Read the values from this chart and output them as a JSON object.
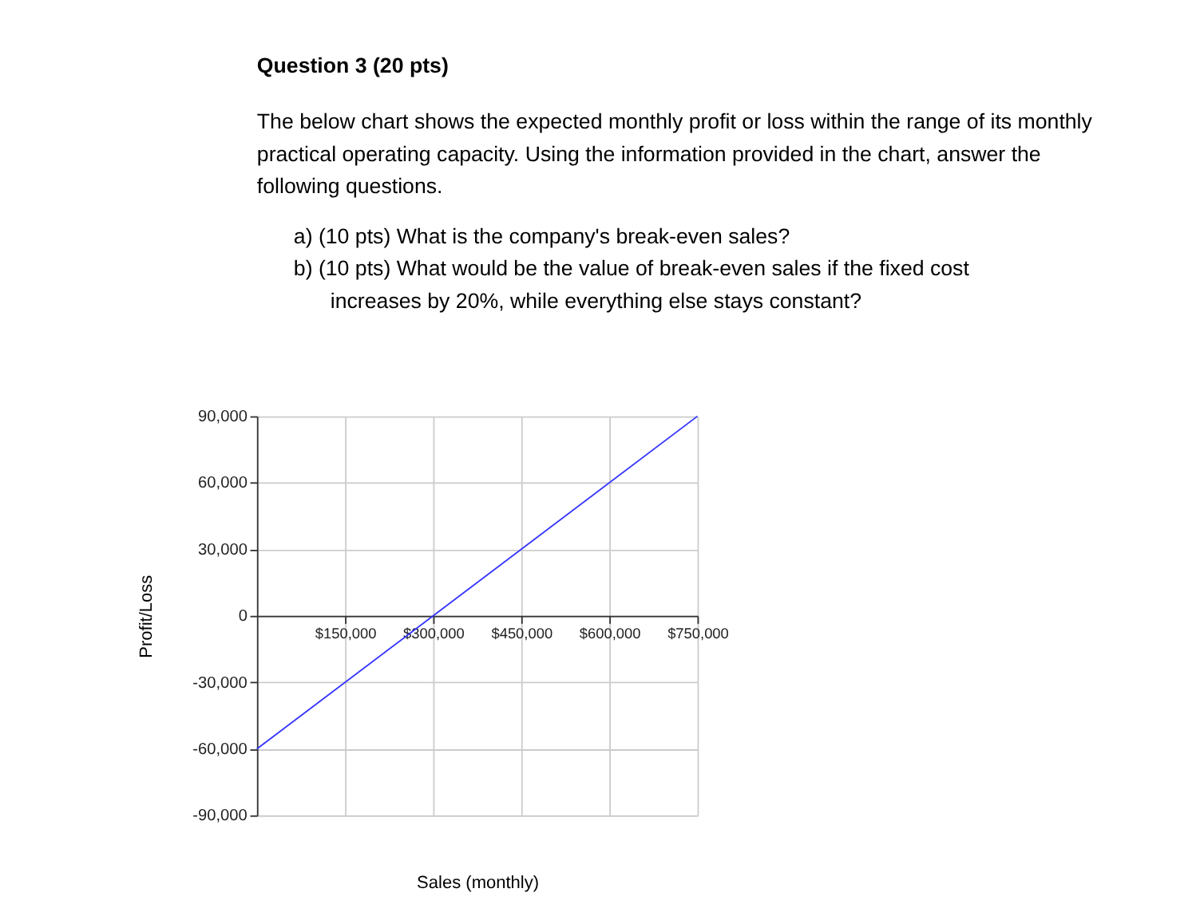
{
  "chart_data": {
    "type": "line",
    "title": "Question 3 (20 pts)",
    "subtitle": "The below chart shows the expected monthly profit or loss within the range of its monthly practical operating capacity. Using the information provided in the chart, answer the following questions.",
    "annotations": [
      "a)  (10 pts) What is the company's break-even sales?",
      "b)  (10 pts) What would be the value of break-even sales if the fixed cost increases by 20%, while everything else stays constant?"
    ],
    "xlabel": "Sales (monthly)",
    "ylabel": "Profit/Loss",
    "x": [
      0,
      750000
    ],
    "series": [
      {
        "color": "#3333ff",
        "values": [
          -60000,
          90000
        ]
      }
    ],
    "xlim": [
      0,
      750000
    ],
    "xticks": [
      {
        "value": 150000,
        "label": "$150,000"
      },
      {
        "value": 300000,
        "label": "$300,000"
      },
      {
        "value": 450000,
        "label": "$450,000"
      },
      {
        "value": 600000,
        "label": "$600,000"
      },
      {
        "value": 750000,
        "label": "$750,000"
      }
    ],
    "ylim": [
      -90000,
      90000
    ],
    "yticks": [
      {
        "value": -90000,
        "label": "-90,000"
      },
      {
        "value": -60000,
        "label": "-60,000"
      },
      {
        "value": -30000,
        "label": "-30,000"
      },
      {
        "value": 0,
        "label": "0"
      },
      {
        "value": 30000,
        "label": "30,000"
      },
      {
        "value": 60000,
        "label": "60,000"
      },
      {
        "value": 90000,
        "label": "90,000"
      }
    ],
    "grid": true,
    "marker": "none",
    "line_style": "solid"
  }
}
